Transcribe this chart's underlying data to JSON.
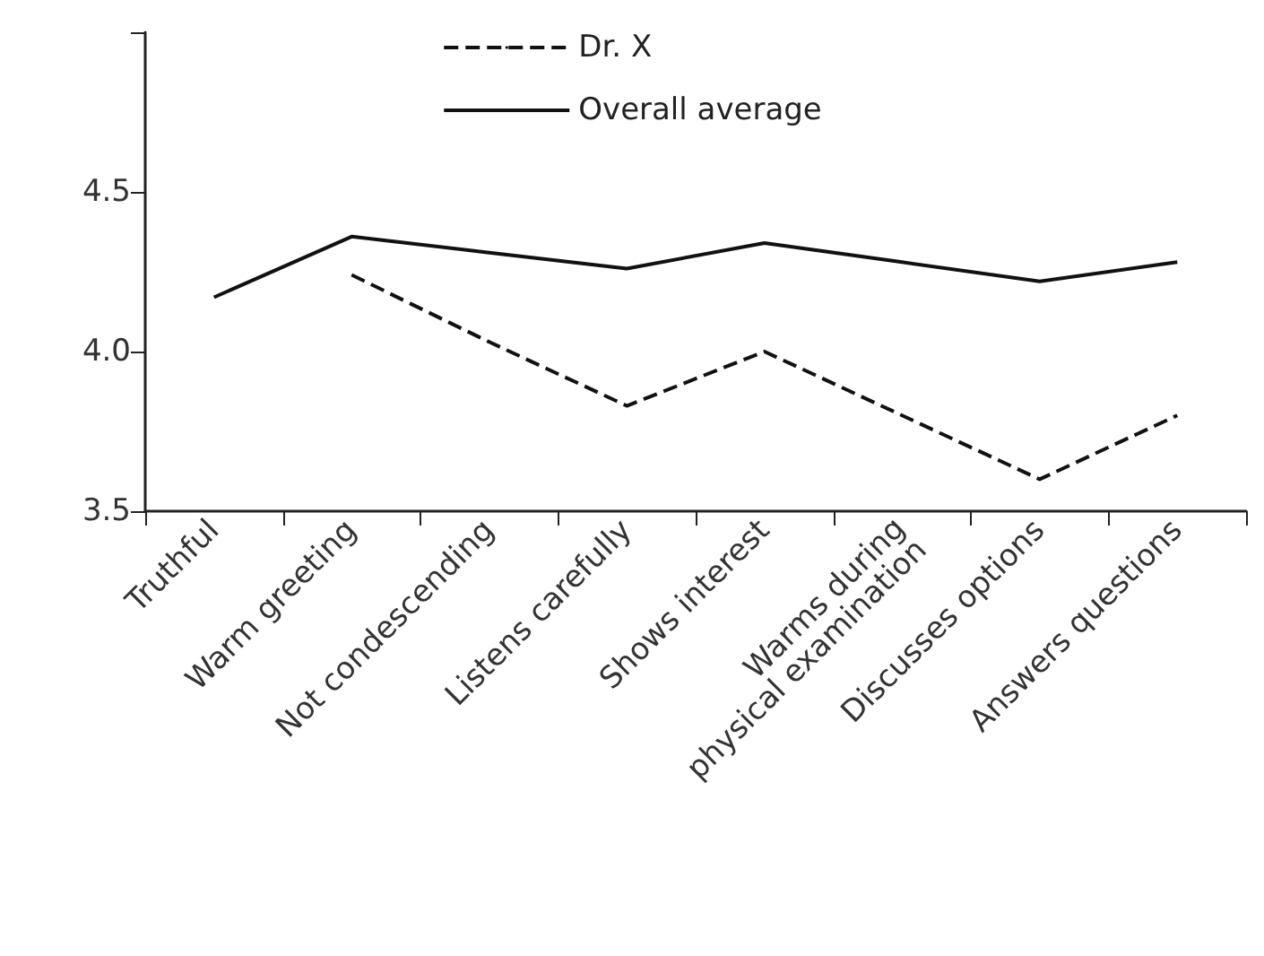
{
  "chart_data": {
    "type": "line",
    "categories": [
      "Truthful",
      "Warm greeting",
      "Not condescending",
      "Listens carefully",
      "Shows interest",
      "Warms during\nphysical examination",
      "Discusses options",
      "Answers questions"
    ],
    "series": [
      {
        "name": "Dr. X",
        "color": "#111111",
        "line_style": "dashed",
        "values": [
          null,
          4.24,
          4.03,
          3.83,
          4.0,
          3.8,
          3.6,
          3.8
        ]
      },
      {
        "name": "Overall average",
        "color": "#111111",
        "line_style": "solid",
        "values": [
          4.17,
          4.36,
          4.31,
          4.26,
          4.34,
          4.28,
          4.22,
          4.28
        ]
      }
    ],
    "ylim": [
      3.5,
      5.0
    ],
    "yticks": [
      {
        "value": 3.5,
        "label": "3.5"
      },
      {
        "value": 4.0,
        "label": "4.0"
      },
      {
        "value": 4.5,
        "label": "4.5"
      },
      {
        "value": 5.0,
        "label": null
      }
    ],
    "grid": false,
    "legend": "top",
    "marker": "none"
  }
}
